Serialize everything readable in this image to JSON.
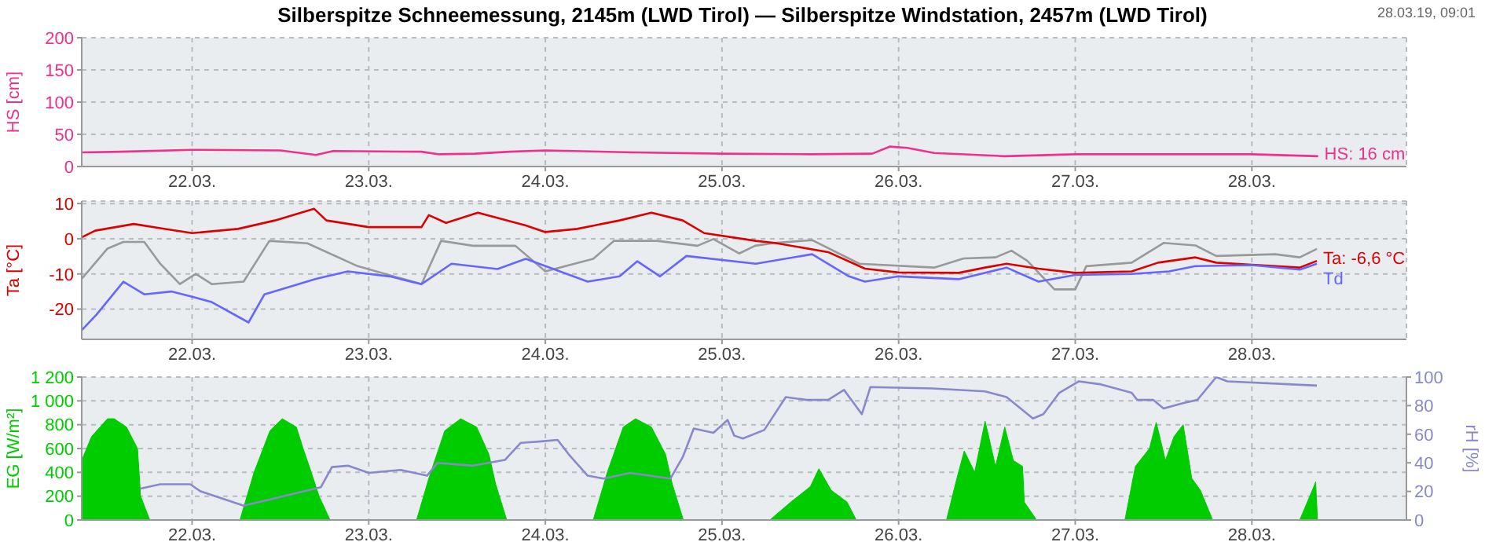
{
  "chart_data": [
    {
      "type": "line",
      "title": "Silberspitze Schneemessung, 2145m (LWD Tirol) — Silberspitze Windstation, 2457m (LWD Tirol)",
      "annotations": [
        "28.03.19, 09:01"
      ],
      "ylabel": "HS [cm]",
      "xlim": [
        "--03-21T09:00",
        "--03-28T21:00"
      ],
      "xticks": [
        {
          "value": "--03-22",
          "label": "22.03."
        },
        {
          "value": "--03-23",
          "label": "23.03."
        },
        {
          "value": "--03-24",
          "label": "24.03."
        },
        {
          "value": "--03-25",
          "label": "25.03."
        },
        {
          "value": "--03-26",
          "label": "26.03."
        },
        {
          "value": "--03-27",
          "label": "27.03."
        },
        {
          "value": "--03-28",
          "label": "28.03."
        }
      ],
      "ylim": [
        0,
        200
      ],
      "yticks": [
        0,
        50,
        100,
        150,
        200
      ],
      "grid": true,
      "series": [
        {
          "name": "HS: 16 cm",
          "color": "#f0308c",
          "x": [
            "--03-21T09:00",
            "--03-21T14:25",
            "--03-22T00:00",
            "--03-22T12:00",
            "--03-22T16:50",
            "--03-22T19:10",
            "--03-23T07:10",
            "--03-23T09:35",
            "--03-23T14:25",
            "--03-23T19:10",
            "--03-24T00:00",
            "--03-24T12:00",
            "--03-25T00:00",
            "--03-25T12:00",
            "--03-25T20:25",
            "--03-25T22:50",
            "--03-26T01:10",
            "--03-26T04:50",
            "--03-26T14:25",
            "--03-27T00:00",
            "--03-27T12:00",
            "--03-28T00:00",
            "--03-28T09:00"
          ],
          "values": [
            22,
            23,
            26,
            25,
            18,
            24,
            23,
            19,
            20,
            23,
            25,
            22,
            20,
            19,
            20,
            31,
            29,
            21,
            16,
            19,
            19,
            19,
            16
          ]
        }
      ]
    },
    {
      "type": "line",
      "ylabel": "Ta [°C]",
      "xlim": [
        "--03-21T09:00",
        "--03-28T21:00"
      ],
      "xticks": [
        {
          "value": "--03-22",
          "label": "22.03."
        },
        {
          "value": "--03-23",
          "label": "23.03."
        },
        {
          "value": "--03-24",
          "label": "24.03."
        },
        {
          "value": "--03-25",
          "label": "25.03."
        },
        {
          "value": "--03-26",
          "label": "26.03."
        },
        {
          "value": "--03-27",
          "label": "27.03."
        },
        {
          "value": "--03-28",
          "label": "28.03."
        }
      ],
      "ylim": [
        -28.6,
        10.7
      ],
      "yticks": [
        -20,
        -10,
        0,
        10
      ],
      "grid": true,
      "series": [
        {
          "color": "#999999",
          "x": [
            "--03-21T09:00",
            "--03-21T12:30",
            "--03-21T14:40",
            "--03-21T17:30",
            "--03-21T19:40",
            "--03-21T22:20",
            "--03-22T00:30",
            "--03-22T02:40",
            "--03-22T07:00",
            "--03-22T10:30",
            "--03-22T15:40",
            "--03-22T22:30",
            "--03-23T07:10",
            "--03-23T09:50",
            "--03-23T14:10",
            "--03-23T19:55",
            "--03-24T00:00",
            "--03-24T06:30",
            "--03-24T09:20",
            "--03-24T15:10",
            "--03-24T20:40",
            "--03-24T22:50",
            "--03-25T02:20",
            "--03-25T04:30",
            "--03-25T07:10",
            "--03-25T12:15",
            "--03-25T18:40",
            "--03-26T04:50",
            "--03-26T08:50",
            "--03-26T13:10",
            "--03-26T15:20",
            "--03-26T17:30",
            "--03-26T21:10",
            "--03-27T00:00",
            "--03-27T01:30",
            "--03-27T07:40",
            "--03-27T12:00",
            "--03-27T16:20",
            "--03-27T19:10",
            "--03-28T03:10",
            "--03-28T06:30",
            "--03-28T08:50"
          ],
          "values": [
            -11.4,
            -2.8,
            -0.9,
            -0.9,
            -7.1,
            -12.9,
            -10,
            -12.9,
            -12.2,
            -0.6,
            -1.3,
            -7.8,
            -12.9,
            -0.6,
            -2,
            -2,
            -9.3,
            -5.7,
            -0.6,
            -0.6,
            -2,
            -0.1,
            -4.2,
            -2,
            -1.2,
            -0.4,
            -7.1,
            -8.2,
            -5.6,
            -5.3,
            -3.4,
            -6.3,
            -14.4,
            -14.4,
            -7.8,
            -6.8,
            -1.2,
            -1.9,
            -4.9,
            -4.4,
            -5.3,
            -2.9
          ]
        },
        {
          "name": "Ta: -6,6 °C",
          "color": "#dd0000",
          "x": [
            "--03-21T09:00",
            "--03-21T10:50",
            "--03-21T16:05",
            "--03-21T19:40",
            "--03-22T00:00",
            "--03-22T06:15",
            "--03-22T11:15",
            "--03-22T16:35",
            "--03-22T18:15",
            "--03-23T00:00",
            "--03-23T07:10",
            "--03-23T08:10",
            "--03-23T10:30",
            "--03-23T14:50",
            "--03-23T21:20",
            "--03-24T00:00",
            "--03-24T04:20",
            "--03-24T10:05",
            "--03-24T14:25",
            "--03-24T18:40",
            "--03-24T21:35",
            "--03-25T04:35",
            "--03-25T07:10",
            "--03-25T14:25",
            "--03-25T19:25",
            "--03-26T00:00",
            "--03-26T08:10",
            "--03-26T11:45",
            "--03-26T14:40",
            "--03-26T19:00",
            "--03-27T00:00",
            "--03-27T07:40",
            "--03-27T11:15",
            "--03-27T16:20",
            "--03-27T19:10",
            "--03-28T00:00",
            "--03-28T06:30",
            "--03-28T08:50"
          ],
          "values": [
            0.4,
            2.3,
            4.2,
            3,
            1.6,
            2.8,
            5.2,
            8.5,
            5.2,
            3.3,
            3.3,
            6.7,
            4.5,
            7.4,
            3.8,
            1.9,
            2.8,
            5.2,
            7.4,
            5.2,
            1.6,
            -0.6,
            -1.2,
            -3.8,
            -8.5,
            -9.6,
            -9.7,
            -8.2,
            -7.1,
            -8.5,
            -9.7,
            -9.3,
            -6.8,
            -5.3,
            -6.8,
            -7.4,
            -8.2,
            -6.3
          ]
        },
        {
          "name": "Td",
          "color": "#6666ff",
          "x": [
            "--03-21T09:00",
            "--03-21T11:00",
            "--03-21T14:40",
            "--03-21T17:30",
            "--03-21T21:10",
            "--03-22T00:00",
            "--03-22T02:40",
            "--03-22T07:40",
            "--03-22T09:50",
            "--03-22T16:50",
            "--03-22T21:10",
            "--03-23T02:50",
            "--03-23T07:10",
            "--03-23T11:15",
            "--03-23T17:30",
            "--03-23T21:20",
            "--03-24T05:45",
            "--03-24T10:05",
            "--03-24T12:30",
            "--03-24T15:35",
            "--03-24T19:10",
            "--03-25T04:35",
            "--03-25T12:15",
            "--03-25T17:15",
            "--03-25T19:25",
            "--03-26T00:00",
            "--03-26T08:10",
            "--03-26T14:40",
            "--03-26T19:00",
            "--03-27T00:00",
            "--03-27T07:40",
            "--03-27T12:45",
            "--03-27T16:20",
            "--03-28T00:00",
            "--03-28T06:30",
            "--03-28T08:50"
          ],
          "values": [
            -26,
            -21.6,
            -12.2,
            -15.8,
            -15,
            -16.5,
            -18,
            -23.8,
            -15.8,
            -11.4,
            -9.3,
            -10.7,
            -12.9,
            -7.1,
            -8.6,
            -5.7,
            -12.2,
            -10.7,
            -6.4,
            -10.7,
            -4.9,
            -7.1,
            -4.4,
            -10.7,
            -12.2,
            -10.7,
            -11.5,
            -8.2,
            -12.2,
            -10.3,
            -10,
            -9.3,
            -7.8,
            -7.5,
            -8.8,
            -7.1
          ]
        }
      ]
    },
    {
      "type": "area",
      "ylabel": "EG [W/m²]",
      "y2label": "rH [%]",
      "xlim": [
        "--03-21T09:00",
        "--03-28T21:00"
      ],
      "xticks": [
        {
          "value": "--03-22",
          "label": "22.03."
        },
        {
          "value": "--03-23",
          "label": "23.03."
        },
        {
          "value": "--03-24",
          "label": "24.03."
        },
        {
          "value": "--03-25",
          "label": "25.03."
        },
        {
          "value": "--03-26",
          "label": "26.03."
        },
        {
          "value": "--03-27",
          "label": "27.03."
        },
        {
          "value": "--03-28",
          "label": "28.03."
        }
      ],
      "ylim": [
        0,
        1200
      ],
      "yticks": [
        0,
        200,
        400,
        600,
        800,
        {
          "value": 1000,
          "label": "1 000"
        },
        {
          "value": 1200,
          "label": "1 200"
        }
      ],
      "y2lim": [
        0,
        100
      ],
      "y2ticks": [
        0,
        20,
        40,
        60,
        80,
        100
      ],
      "grid": true,
      "series": [
        {
          "color": "#00cc00",
          "x": [
            "--03-21T09:00",
            "--03-21T10:20",
            "--03-21T12:30",
            "--03-21T13:25",
            "--03-21T15:05",
            "--03-21T16:35",
            "--03-21T17:00",
            "--03-21T18:15",
            "--03-22T06:30",
            "--03-22T08:25",
            "--03-22T10:35",
            "--03-22T12:15",
            "--03-22T14:10",
            "--03-22T15:05",
            "--03-22T16:05",
            "--03-22T17:15",
            "--03-22T18:45",
            "--03-23T06:30",
            "--03-23T08:10",
            "--03-23T10:20",
            "--03-23T12:30",
            "--03-23T14:40",
            "--03-23T16:20",
            "--03-23T17:15",
            "--03-23T18:45",
            "--03-24T06:30",
            "--03-24T08:25",
            "--03-24T10:35",
            "--03-24T12:15",
            "--03-24T14:25",
            "--03-24T16:20",
            "--03-24T17:15",
            "--03-24T18:45",
            "--03-25T06:30",
            "--03-25T09:20",
            "--03-25T12:00",
            "--03-25T13:10",
            "--03-25T14:50",
            "--03-25T17:00",
            "--03-25T18:15",
            "--03-26T06:30",
            "--03-26T07:55",
            "--03-26T08:55",
            "--03-26T10:20",
            "--03-26T11:45",
            "--03-26T13:10",
            "--03-26T14:25",
            "--03-26T15:35",
            "--03-26T16:50",
            "--03-26T17:05",
            "--03-26T18:45",
            "--03-27T06:45",
            "--03-27T08:10",
            "--03-27T10:05",
            "--03-27T11:00",
            "--03-27T12:15",
            "--03-27T13:25",
            "--03-27T14:40",
            "--03-27T15:50",
            "--03-27T17:00",
            "--03-27T18:40",
            "--03-28T06:30",
            "--03-28T08:25",
            "--03-28T08:40",
            "--03-28T08:55"
          ],
          "values": [
            500,
            700,
            850,
            850,
            780,
            600,
            200,
            0,
            0,
            400,
            750,
            850,
            780,
            600,
            420,
            200,
            0,
            0,
            350,
            750,
            850,
            780,
            550,
            300,
            0,
            0,
            400,
            780,
            850,
            780,
            550,
            300,
            0,
            0,
            150,
            280,
            430,
            250,
            150,
            0,
            0,
            350,
            580,
            400,
            830,
            450,
            780,
            500,
            450,
            150,
            0,
            0,
            450,
            600,
            820,
            500,
            700,
            800,
            350,
            250,
            0,
            0,
            280,
            320,
            0
          ]
        },
        {
          "type": "line",
          "axis": "y2",
          "color": "#8888cc",
          "x": [
            "--03-21T17:00",
            "--03-21T19:40",
            "--03-21T23:45",
            "--03-22T01:10",
            "--03-22T07:00",
            "--03-22T17:30",
            "--03-22T19:00",
            "--03-22T21:10",
            "--03-23T00:00",
            "--03-23T04:20",
            "--03-23T07:55",
            "--03-23T09:20",
            "--03-23T14:10",
            "--03-23T18:30",
            "--03-23T20:40",
            "--03-23T23:30",
            "--03-24T01:40",
            "--03-24T03:10",
            "--03-24T05:45",
            "--03-24T07:55",
            "--03-24T11:30",
            "--03-24T17:00",
            "--03-24T18:40",
            "--03-24T20:10",
            "--03-24T22:50",
            "--03-25T00:45",
            "--03-25T01:40",
            "--03-25T02:50",
            "--03-25T05:45",
            "--03-25T08:40",
            "--03-25T11:30",
            "--03-25T14:25",
            "--03-25T16:35",
            "--03-25T19:00",
            "--03-25T20:10",
            "--03-26T04:35",
            "--03-26T11:45",
            "--03-26T14:40",
            "--03-26T18:15",
            "--03-26T19:40",
            "--03-26T21:50",
            "--03-27T00:30",
            "--03-27T03:20",
            "--03-27T07:40",
            "--03-27T08:25",
            "--03-27T10:35",
            "--03-27T12:00",
            "--03-27T14:50",
            "--03-27T16:35",
            "--03-27T19:10",
            "--03-27T20:40",
            "--03-28T08:50"
          ],
          "values": [
            22,
            25,
            25,
            20,
            10,
            23,
            37,
            38,
            33,
            35,
            31,
            40,
            38,
            42,
            54,
            55,
            56,
            46,
            31,
            29,
            33,
            29,
            44,
            64,
            61,
            70,
            59,
            57,
            63,
            86,
            84,
            84,
            91,
            74,
            93,
            92,
            90,
            86,
            71,
            74,
            89,
            97,
            95,
            89,
            84,
            84,
            78,
            82,
            84,
            100,
            97,
            94
          ]
        }
      ]
    }
  ]
}
